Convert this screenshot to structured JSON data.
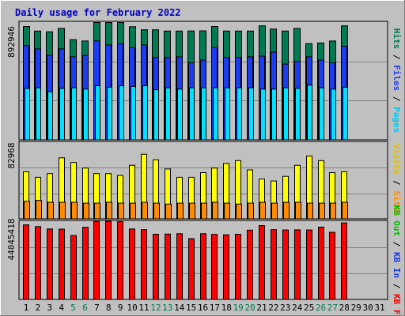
{
  "chart_data": [
    {
      "type": "bar",
      "title": "Daily usage for February 2022",
      "days": [
        "1",
        "2",
        "3",
        "4",
        "5",
        "6",
        "7",
        "8",
        "9",
        "10",
        "11",
        "12",
        "13",
        "14",
        "15",
        "16",
        "17",
        "18",
        "19",
        "20",
        "21",
        "22",
        "23",
        "24",
        "25",
        "26",
        "27",
        "28",
        "29",
        "30",
        "31"
      ],
      "weekend_days": [
        "5",
        "6",
        "12",
        "13",
        "19",
        "20",
        "26",
        "27"
      ],
      "ymax_label": "892946",
      "ymax": 892946,
      "series": [
        {
          "name": "Hits",
          "color": "#007a52",
          "values": [
            860000,
            825000,
            820000,
            845000,
            760000,
            750000,
            890000,
            890000,
            890000,
            858000,
            835000,
            835000,
            825000,
            825000,
            826000,
            827000,
            860000,
            825000,
            825000,
            825000,
            865000,
            840000,
            825000,
            845000,
            730000,
            735000,
            750000,
            865000,
            0,
            0,
            0
          ]
        },
        {
          "name": "Files",
          "color": "#1a3cf2",
          "values": [
            715000,
            690000,
            640000,
            690000,
            630000,
            640000,
            750000,
            720000,
            730000,
            700000,
            720000,
            625000,
            625000,
            630000,
            585000,
            605000,
            700000,
            625000,
            625000,
            630000,
            635000,
            665000,
            575000,
            595000,
            630000,
            605000,
            585000,
            710000,
            0,
            0,
            0
          ]
        },
        {
          "name": "Pages",
          "color": "#00e1ff",
          "values": [
            390000,
            395000,
            365000,
            390000,
            395000,
            385000,
            410000,
            400000,
            410000,
            405000,
            410000,
            380000,
            395000,
            385000,
            395000,
            395000,
            395000,
            395000,
            395000,
            395000,
            385000,
            385000,
            395000,
            390000,
            415000,
            395000,
            385000,
            400000,
            0,
            0,
            0
          ]
        }
      ]
    },
    {
      "type": "bar",
      "ymax_label": "82968",
      "ymax": 82968,
      "series": [
        {
          "name": "Visits",
          "color": "#ffff00",
          "values": [
            51000,
            45000,
            49000,
            66000,
            61000,
            55000,
            49000,
            49000,
            47000,
            58000,
            70000,
            64000,
            54000,
            45000,
            45000,
            50000,
            55000,
            60000,
            63000,
            53000,
            43000,
            41000,
            46000,
            58000,
            68000,
            63000,
            50000,
            51000,
            0,
            0,
            0
          ]
        },
        {
          "name": "Sites",
          "color": "#ff8c00",
          "values": [
            19000,
            20000,
            18000,
            18000,
            18000,
            17000,
            17000,
            18000,
            17000,
            17000,
            18000,
            17000,
            16000,
            17000,
            17000,
            17000,
            18000,
            17000,
            16000,
            17000,
            18000,
            17000,
            18000,
            18000,
            17000,
            17000,
            17000,
            18000,
            0,
            0,
            0
          ]
        }
      ]
    },
    {
      "type": "bar",
      "ymax_label": "44045418",
      "ymax": 44045418,
      "series": [
        {
          "name": "KB Out",
          "color": "#00c000",
          "values": [
            0,
            0,
            0,
            0,
            0,
            0,
            0,
            0,
            0,
            0,
            0,
            0,
            0,
            0,
            0,
            0,
            0,
            0,
            0,
            0,
            0,
            0,
            0,
            0,
            0,
            0,
            0,
            0,
            0,
            0,
            0
          ]
        },
        {
          "name": "KB In",
          "color": "#1a3cf2",
          "values": [
            0,
            0,
            0,
            0,
            0,
            0,
            0,
            0,
            0,
            0,
            0,
            0,
            0,
            0,
            0,
            0,
            0,
            0,
            0,
            0,
            0,
            0,
            0,
            0,
            0,
            0,
            0,
            0,
            0,
            0,
            0
          ]
        },
        {
          "name": "KB F",
          "color": "#ff0000",
          "values": [
            42000000,
            41000000,
            39700000,
            39600000,
            36000000,
            40600000,
            43900000,
            44000000,
            43800000,
            39700000,
            39300000,
            36700000,
            36800000,
            37000000,
            34200000,
            37000000,
            36600000,
            36400000,
            36700000,
            39000000,
            41600000,
            39300000,
            39100000,
            39200000,
            39100000,
            40700000,
            37800000,
            43100000,
            0,
            0,
            0
          ]
        }
      ]
    }
  ],
  "legend_right": {
    "panel1": [
      {
        "label": "Hits",
        "color": "#007a52"
      },
      {
        "label": "/",
        "color": "#000000"
      },
      {
        "label": "Files",
        "color": "#1a3cf2"
      },
      {
        "label": "/",
        "color": "#000000"
      },
      {
        "label": "Pages",
        "color": "#00c8f0"
      }
    ],
    "panel2": [
      {
        "label": "Visits",
        "color": "#e0c000"
      },
      {
        "label": "/",
        "color": "#000000"
      },
      {
        "label": "Sites",
        "color": "#ff8c00"
      }
    ],
    "panel3": [
      {
        "label": "KB Out",
        "color": "#00c000"
      },
      {
        "label": "/",
        "color": "#000000"
      },
      {
        "label": "KB In",
        "color": "#1a3cf2"
      },
      {
        "label": "/",
        "color": "#000000"
      },
      {
        "label": "KB F",
        "color": "#ff0000"
      }
    ]
  },
  "colors": {
    "background": "#c0c0c0",
    "title": "#0000c0",
    "weekend_label": "#007a52",
    "weekday_label": "#000000",
    "grid": "#808080"
  }
}
